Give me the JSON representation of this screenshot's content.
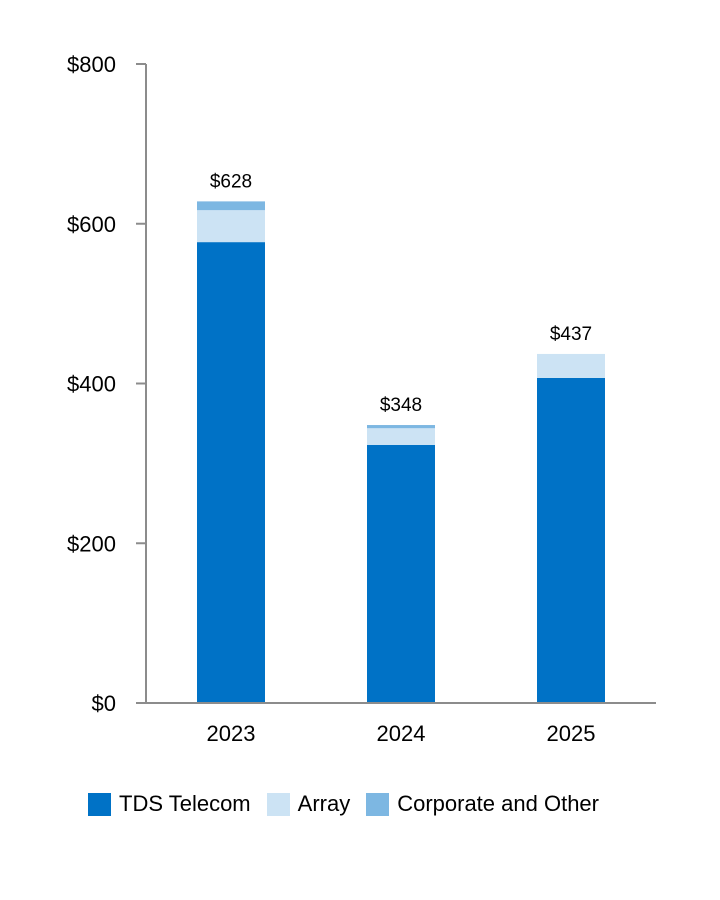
{
  "chart_data": {
    "type": "bar",
    "stacked": true,
    "title": "",
    "xlabel": "",
    "ylabel": "",
    "categories": [
      "2023",
      "2024",
      "2025"
    ],
    "series": [
      {
        "name": "TDS Telecom",
        "color": "#0072C6",
        "values": [
          577,
          323,
          407
        ]
      },
      {
        "name": "Array",
        "color": "#CCE3F4",
        "values": [
          40,
          21,
          30
        ]
      },
      {
        "name": "Corporate and Other",
        "color": "#7DB7E2",
        "values": [
          11,
          4,
          0
        ]
      }
    ],
    "totals": [
      628,
      348,
      437
    ],
    "total_labels": [
      "$628",
      "$348",
      "$437"
    ],
    "ylim": [
      0,
      800
    ],
    "yticks": [
      0,
      200,
      400,
      600,
      800
    ],
    "ytick_labels": [
      "$0",
      "$200",
      "$400",
      "$600",
      "$800"
    ],
    "grid": false,
    "legend_position": "bottom"
  }
}
